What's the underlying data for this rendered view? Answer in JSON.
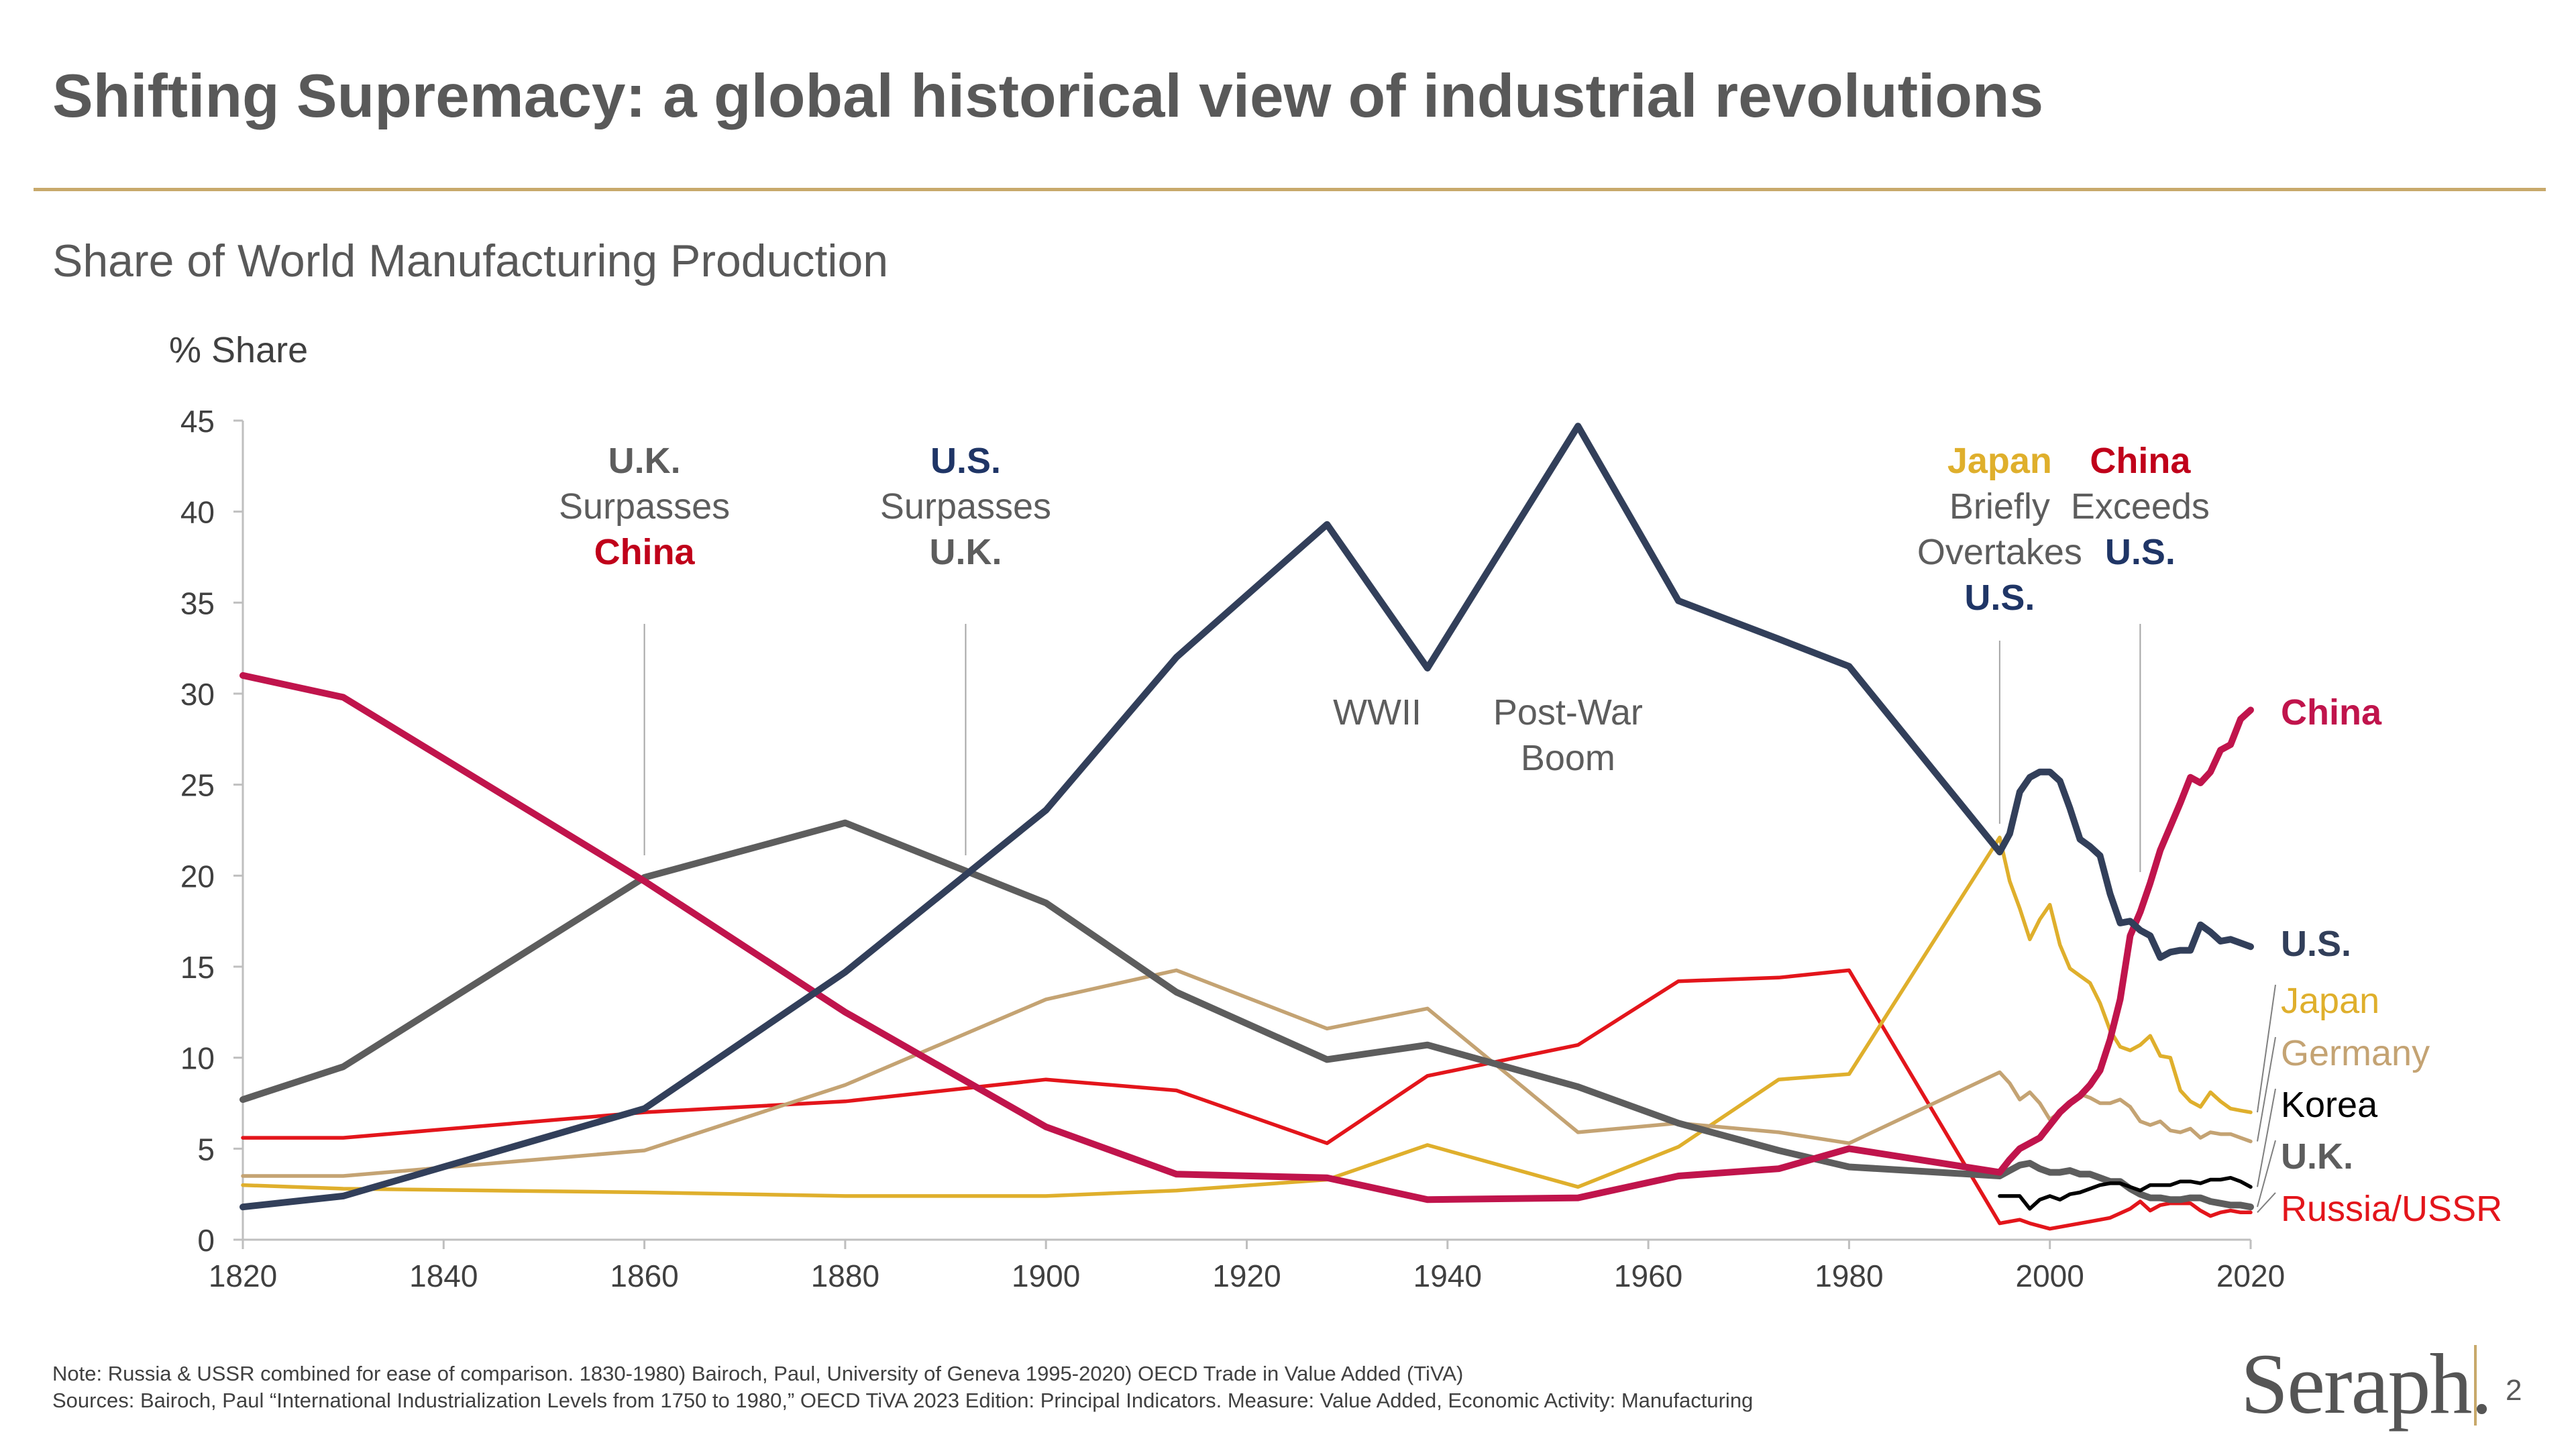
{
  "page": {
    "title": "Shifting Supremacy: a global historical view of industrial revolutions",
    "subtitle": "Share of World Manufacturing Production",
    "note": "Note: Russia & USSR combined for ease of comparison. 1830-1980) Bairoch, Paul, University of Geneva 1995-2020) OECD Trade in Value Added (TiVA)",
    "sources": "Sources:  Bairoch, Paul “International Industrialization Levels from 1750 to 1980,” OECD TiVA 2023 Edition: Principal Indicators. Measure: Value Added, Economic Activity: Manufacturing",
    "logo": "Seraph.",
    "page_number": "2",
    "accent_color": "#c8a96b"
  },
  "chart_data": {
    "type": "line",
    "ylabel": "% Share",
    "xlim": [
      1820,
      2020
    ],
    "ylim": [
      0,
      45
    ],
    "x_ticks": [
      1820,
      1840,
      1860,
      1880,
      1900,
      1920,
      1940,
      1960,
      1980,
      2000,
      2020
    ],
    "y_ticks": [
      0,
      5,
      10,
      15,
      20,
      25,
      30,
      35,
      40,
      45
    ],
    "grid": false,
    "legend": "inline-right",
    "series": [
      {
        "name": "Russia/USSR",
        "color": "#e3151b",
        "points": [
          [
            1820,
            5.6
          ],
          [
            1830,
            5.6
          ],
          [
            1860,
            7.0
          ],
          [
            1880,
            7.6
          ],
          [
            1900,
            8.8
          ],
          [
            1913,
            8.2
          ],
          [
            1928,
            5.3
          ],
          [
            1938,
            9.0
          ],
          [
            1953,
            10.7
          ],
          [
            1963,
            14.2
          ],
          [
            1973,
            14.4
          ],
          [
            1980,
            14.8
          ],
          [
            1995,
            0.9
          ],
          [
            1997,
            1.1
          ],
          [
            1998,
            0.9
          ],
          [
            2000,
            0.6
          ],
          [
            2002,
            0.8
          ],
          [
            2004,
            1.0
          ],
          [
            2006,
            1.2
          ],
          [
            2008,
            1.7
          ],
          [
            2009,
            2.1
          ],
          [
            2010,
            1.6
          ],
          [
            2011,
            1.9
          ],
          [
            2012,
            2.0
          ],
          [
            2013,
            2.0
          ],
          [
            2014,
            2.0
          ],
          [
            2015,
            1.6
          ],
          [
            2016,
            1.3
          ],
          [
            2017,
            1.5
          ],
          [
            2018,
            1.6
          ],
          [
            2019,
            1.5
          ],
          [
            2020,
            1.5
          ]
        ]
      },
      {
        "name": "Japan",
        "color": "#dfaf2c",
        "points": [
          [
            1820,
            3.0
          ],
          [
            1830,
            2.8
          ],
          [
            1860,
            2.6
          ],
          [
            1880,
            2.4
          ],
          [
            1900,
            2.4
          ],
          [
            1913,
            2.7
          ],
          [
            1928,
            3.3
          ],
          [
            1938,
            5.2
          ],
          [
            1953,
            2.9
          ],
          [
            1963,
            5.1
          ],
          [
            1973,
            8.8
          ],
          [
            1980,
            9.1
          ],
          [
            1995,
            22.1
          ],
          [
            1996,
            19.7
          ],
          [
            1997,
            18.2
          ],
          [
            1998,
            16.5
          ],
          [
            1999,
            17.6
          ],
          [
            2000,
            18.4
          ],
          [
            2001,
            16.2
          ],
          [
            2002,
            14.9
          ],
          [
            2003,
            14.5
          ],
          [
            2004,
            14.1
          ],
          [
            2005,
            13.0
          ],
          [
            2006,
            11.5
          ],
          [
            2007,
            10.6
          ],
          [
            2008,
            10.4
          ],
          [
            2009,
            10.7
          ],
          [
            2010,
            11.2
          ],
          [
            2011,
            10.1
          ],
          [
            2012,
            10.0
          ],
          [
            2013,
            8.2
          ],
          [
            2014,
            7.6
          ],
          [
            2015,
            7.3
          ],
          [
            2016,
            8.1
          ],
          [
            2017,
            7.6
          ],
          [
            2018,
            7.2
          ],
          [
            2019,
            7.1
          ],
          [
            2020,
            7.0
          ]
        ]
      },
      {
        "name": "Germany",
        "color": "#c4a373",
        "points": [
          [
            1820,
            3.5
          ],
          [
            1830,
            3.5
          ],
          [
            1860,
            4.9
          ],
          [
            1880,
            8.5
          ],
          [
            1900,
            13.2
          ],
          [
            1913,
            14.8
          ],
          [
            1928,
            11.6
          ],
          [
            1938,
            12.7
          ],
          [
            1953,
            5.9
          ],
          [
            1963,
            6.4
          ],
          [
            1973,
            5.9
          ],
          [
            1980,
            5.3
          ],
          [
            1995,
            9.2
          ],
          [
            1996,
            8.6
          ],
          [
            1997,
            7.7
          ],
          [
            1998,
            8.1
          ],
          [
            1999,
            7.5
          ],
          [
            2000,
            6.6
          ],
          [
            2001,
            7.0
          ],
          [
            2002,
            7.4
          ],
          [
            2003,
            8.0
          ],
          [
            2004,
            7.8
          ],
          [
            2005,
            7.5
          ],
          [
            2006,
            7.5
          ],
          [
            2007,
            7.7
          ],
          [
            2008,
            7.3
          ],
          [
            2009,
            6.5
          ],
          [
            2010,
            6.3
          ],
          [
            2011,
            6.5
          ],
          [
            2012,
            6.0
          ],
          [
            2013,
            5.9
          ],
          [
            2014,
            6.1
          ],
          [
            2015,
            5.6
          ],
          [
            2016,
            5.9
          ],
          [
            2017,
            5.8
          ],
          [
            2018,
            5.8
          ],
          [
            2019,
            5.6
          ],
          [
            2020,
            5.4
          ]
        ]
      },
      {
        "name": "U.K.",
        "color": "#5d5d5d",
        "points": [
          [
            1820,
            7.7
          ],
          [
            1830,
            9.5
          ],
          [
            1860,
            19.9
          ],
          [
            1880,
            22.9
          ],
          [
            1900,
            18.5
          ],
          [
            1913,
            13.6
          ],
          [
            1928,
            9.9
          ],
          [
            1938,
            10.7
          ],
          [
            1953,
            8.4
          ],
          [
            1963,
            6.4
          ],
          [
            1973,
            4.9
          ],
          [
            1980,
            4.0
          ],
          [
            1995,
            3.5
          ],
          [
            1996,
            3.8
          ],
          [
            1997,
            4.1
          ],
          [
            1998,
            4.2
          ],
          [
            1999,
            3.9
          ],
          [
            2000,
            3.7
          ],
          [
            2001,
            3.7
          ],
          [
            2002,
            3.8
          ],
          [
            2003,
            3.6
          ],
          [
            2004,
            3.6
          ],
          [
            2005,
            3.4
          ],
          [
            2006,
            3.2
          ],
          [
            2007,
            3.2
          ],
          [
            2008,
            2.8
          ],
          [
            2009,
            2.5
          ],
          [
            2010,
            2.3
          ],
          [
            2011,
            2.3
          ],
          [
            2012,
            2.2
          ],
          [
            2013,
            2.2
          ],
          [
            2014,
            2.3
          ],
          [
            2015,
            2.3
          ],
          [
            2016,
            2.1
          ],
          [
            2017,
            2.0
          ],
          [
            2018,
            1.9
          ],
          [
            2019,
            1.9
          ],
          [
            2020,
            1.8
          ]
        ]
      },
      {
        "name": "Korea",
        "color": "#000000",
        "points": [
          [
            1995,
            2.4
          ],
          [
            1996,
            2.4
          ],
          [
            1997,
            2.4
          ],
          [
            1998,
            1.7
          ],
          [
            1999,
            2.2
          ],
          [
            2000,
            2.4
          ],
          [
            2001,
            2.2
          ],
          [
            2002,
            2.5
          ],
          [
            2003,
            2.6
          ],
          [
            2004,
            2.8
          ],
          [
            2005,
            3.0
          ],
          [
            2006,
            3.1
          ],
          [
            2007,
            3.1
          ],
          [
            2008,
            2.9
          ],
          [
            2009,
            2.7
          ],
          [
            2010,
            3.0
          ],
          [
            2011,
            3.0
          ],
          [
            2012,
            3.0
          ],
          [
            2013,
            3.2
          ],
          [
            2014,
            3.2
          ],
          [
            2015,
            3.1
          ],
          [
            2016,
            3.3
          ],
          [
            2017,
            3.3
          ],
          [
            2018,
            3.4
          ],
          [
            2019,
            3.2
          ],
          [
            2020,
            2.9
          ]
        ]
      },
      {
        "name": "China",
        "color": "#c0144c",
        "points": [
          [
            1820,
            31.0
          ],
          [
            1830,
            29.8
          ],
          [
            1860,
            19.7
          ],
          [
            1880,
            12.5
          ],
          [
            1900,
            6.2
          ],
          [
            1913,
            3.6
          ],
          [
            1928,
            3.4
          ],
          [
            1938,
            2.2
          ],
          [
            1953,
            2.3
          ],
          [
            1963,
            3.5
          ],
          [
            1973,
            3.9
          ],
          [
            1980,
            5.0
          ],
          [
            1995,
            3.7
          ],
          [
            1996,
            4.4
          ],
          [
            1997,
            5.0
          ],
          [
            1998,
            5.3
          ],
          [
            1999,
            5.6
          ],
          [
            2000,
            6.3
          ],
          [
            2001,
            7.0
          ],
          [
            2002,
            7.5
          ],
          [
            2003,
            7.9
          ],
          [
            2004,
            8.5
          ],
          [
            2005,
            9.3
          ],
          [
            2006,
            11.0
          ],
          [
            2007,
            13.2
          ],
          [
            2008,
            16.7
          ],
          [
            2009,
            18.0
          ],
          [
            2010,
            19.6
          ],
          [
            2011,
            21.4
          ],
          [
            2012,
            22.7
          ],
          [
            2013,
            24.0
          ],
          [
            2014,
            25.4
          ],
          [
            2015,
            25.1
          ],
          [
            2016,
            25.7
          ],
          [
            2017,
            26.9
          ],
          [
            2018,
            27.2
          ],
          [
            2019,
            28.6
          ],
          [
            2020,
            29.1
          ]
        ]
      },
      {
        "name": "U.S.",
        "color": "#323f5a",
        "points": [
          [
            1820,
            1.8
          ],
          [
            1830,
            2.4
          ],
          [
            1860,
            7.2
          ],
          [
            1880,
            14.7
          ],
          [
            1900,
            23.6
          ],
          [
            1913,
            32.0
          ],
          [
            1928,
            39.3
          ],
          [
            1938,
            31.4
          ],
          [
            1953,
            44.7
          ],
          [
            1963,
            35.1
          ],
          [
            1973,
            33.0
          ],
          [
            1980,
            31.5
          ],
          [
            1995,
            21.3
          ],
          [
            1996,
            22.3
          ],
          [
            1997,
            24.6
          ],
          [
            1998,
            25.4
          ],
          [
            1999,
            25.7
          ],
          [
            2000,
            25.7
          ],
          [
            2001,
            25.2
          ],
          [
            2002,
            23.7
          ],
          [
            2003,
            22.0
          ],
          [
            2004,
            21.6
          ],
          [
            2005,
            21.1
          ],
          [
            2006,
            19.0
          ],
          [
            2007,
            17.4
          ],
          [
            2008,
            17.5
          ],
          [
            2009,
            17.0
          ],
          [
            2010,
            16.7
          ],
          [
            2011,
            15.5
          ],
          [
            2012,
            15.8
          ],
          [
            2013,
            15.9
          ],
          [
            2014,
            15.9
          ],
          [
            2015,
            17.3
          ],
          [
            2016,
            16.9
          ],
          [
            2017,
            16.4
          ],
          [
            2018,
            16.5
          ],
          [
            2019,
            16.3
          ],
          [
            2020,
            16.1
          ]
        ]
      }
    ],
    "series_labels": [
      {
        "text": "China",
        "color": "#c0144c",
        "bold": true
      },
      {
        "text": "U.S.",
        "color": "#323f5a",
        "bold": true
      },
      {
        "text": "Japan",
        "color": "#dfaf2c",
        "bold": false
      },
      {
        "text": "Germany",
        "color": "#c4a373",
        "bold": false
      },
      {
        "text": "Korea",
        "color": "#000000",
        "bold": false
      },
      {
        "text": "U.K.",
        "color": "#5d5d5d",
        "bold": true
      },
      {
        "text": "Russia/USSR",
        "color": "#e3151b",
        "bold": false
      }
    ],
    "annotations": [
      {
        "year": 1860,
        "lines": [
          {
            "text": "U.K.",
            "color": "#5d5d5d",
            "bold": true
          },
          {
            "text": "Surpasses",
            "color": "#5d5d5d",
            "bold": false
          },
          {
            "text": "China",
            "color": "#c0001a",
            "bold": true
          }
        ]
      },
      {
        "year": 1892,
        "lines": [
          {
            "text": "U.S.",
            "color": "#1f3566",
            "bold": true
          },
          {
            "text": "Surpasses",
            "color": "#5d5d5d",
            "bold": false
          },
          {
            "text": "U.K.",
            "color": "#5d5d5d",
            "bold": true
          }
        ]
      },
      {
        "year": 1995,
        "lines": [
          {
            "text": "Japan",
            "color": "#dfaf2c",
            "bold": true
          },
          {
            "text": "Briefly",
            "color": "#5d5d5d",
            "bold": false
          },
          {
            "text": "Overtakes",
            "color": "#5d5d5d",
            "bold": false
          },
          {
            "text": "U.S.",
            "color": "#1f3566",
            "bold": true
          }
        ]
      },
      {
        "year": 2009,
        "lines": [
          {
            "text": "China",
            "color": "#c0001a",
            "bold": true
          },
          {
            "text": "Exceeds",
            "color": "#5d5d5d",
            "bold": false
          },
          {
            "text": "U.S.",
            "color": "#1f3566",
            "bold": true
          }
        ]
      },
      {
        "year": 1933,
        "lines": [
          {
            "text": "WWII",
            "color": "#5d5d5d",
            "bold": false
          }
        ]
      },
      {
        "year": 1952,
        "lines": [
          {
            "text": "Post-War",
            "color": "#5d5d5d",
            "bold": false
          },
          {
            "text": "Boom",
            "color": "#5d5d5d",
            "bold": false
          }
        ]
      }
    ]
  }
}
